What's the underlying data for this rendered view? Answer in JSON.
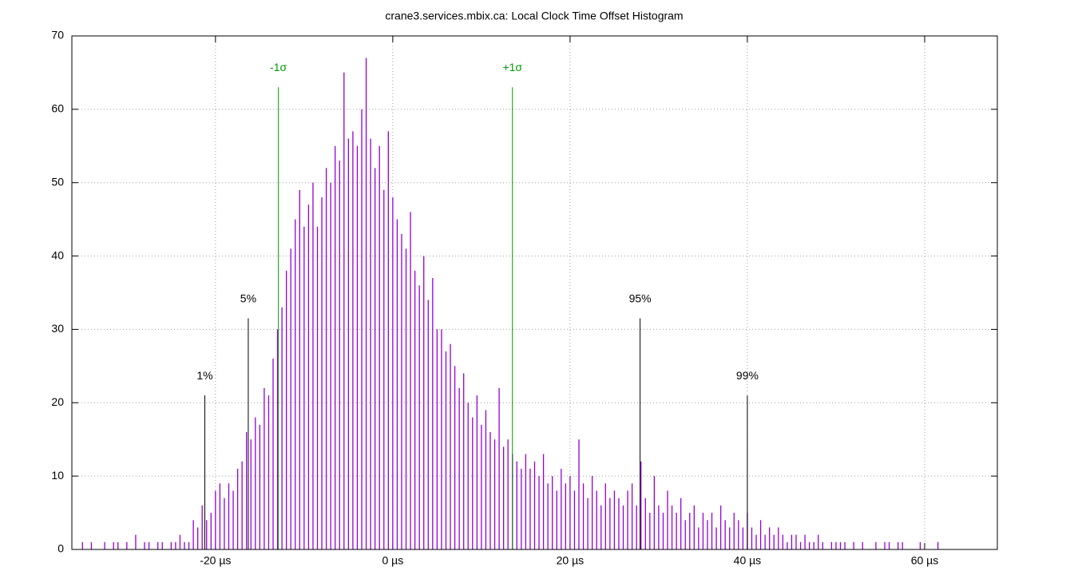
{
  "chart_data": {
    "type": "impulse",
    "title": "crane3.services.mbix.ca: Local Clock Time Offset Histogram",
    "color": "#9400d3",
    "x": [
      -35,
      -34.5,
      -34,
      -33.5,
      -33,
      -32.5,
      -32,
      -31.5,
      -31,
      -30.5,
      -30,
      -29.5,
      -29,
      -28.5,
      -28,
      -27.5,
      -27,
      -26.5,
      -26,
      -25.5,
      -25,
      -24.5,
      -24,
      -23.5,
      -23,
      -22.5,
      -22,
      -21.5,
      -21,
      -20.5,
      -20,
      -19.5,
      -19,
      -18.5,
      -18,
      -17.5,
      -17,
      -16.5,
      -16,
      -15.5,
      -15,
      -14.5,
      -14,
      -13.5,
      -13,
      -12.5,
      -12,
      -11.5,
      -11,
      -10.5,
      -10,
      -9.5,
      -9,
      -8.5,
      -8,
      -7.5,
      -7,
      -6.5,
      -6,
      -5.5,
      -5,
      -4.5,
      -4,
      -3.5,
      -3,
      -2.5,
      -2,
      -1.5,
      -1,
      -0.5,
      0,
      0.5,
      1,
      1.5,
      2,
      2.5,
      3,
      3.5,
      4,
      4.5,
      5,
      5.5,
      6,
      6.5,
      7,
      7.5,
      8,
      8.5,
      9,
      9.5,
      10,
      10.5,
      11,
      11.5,
      12,
      12.5,
      13,
      13.5,
      14,
      14.5,
      15,
      15.5,
      16,
      16.5,
      17,
      17.5,
      18,
      18.5,
      19,
      19.5,
      20,
      20.5,
      21,
      21.5,
      22,
      22.5,
      23,
      23.5,
      24,
      24.5,
      25,
      25.5,
      26,
      26.5,
      27,
      27.5,
      28,
      28.5,
      29,
      29.5,
      30,
      30.5,
      31,
      31.5,
      32,
      32.5,
      33,
      33.5,
      34,
      34.5,
      35,
      35.5,
      36,
      36.5,
      37,
      37.5,
      38,
      38.5,
      39,
      39.5,
      40,
      40.5,
      41,
      41.5,
      42,
      42.5,
      43,
      43.5,
      44,
      44.5,
      45,
      45.5,
      46,
      46.5,
      47,
      47.5,
      48,
      48.5,
      49,
      49.5,
      50,
      50.5,
      51,
      51.5,
      52,
      52.5,
      53,
      53.5,
      54,
      54.5,
      55,
      55.5,
      56,
      56.5,
      57,
      57.5,
      58,
      58.5,
      59,
      59.5,
      60,
      60.5,
      61,
      61.5,
      62
    ],
    "values": [
      1,
      0,
      1,
      0,
      0,
      1,
      0,
      1,
      1,
      0,
      1,
      0,
      2,
      0,
      1,
      1,
      0,
      1,
      1,
      0,
      1,
      1,
      2,
      1,
      1,
      4,
      3,
      6,
      4,
      5,
      8,
      9,
      7,
      9,
      8,
      11,
      12,
      16,
      15,
      18,
      17,
      22,
      21,
      26,
      30,
      33,
      38,
      41,
      45,
      49,
      44,
      47,
      50,
      44,
      48,
      52,
      50,
      55,
      53,
      65,
      56,
      57,
      55,
      60,
      67,
      56,
      52,
      55,
      49,
      57,
      48,
      45,
      43,
      41,
      46,
      38,
      36,
      40,
      34,
      37,
      30,
      30,
      27,
      28,
      25,
      22,
      24,
      20,
      18,
      21,
      17,
      19,
      16,
      15,
      22,
      14,
      15,
      13,
      12,
      11,
      13,
      11,
      12,
      10,
      13,
      9,
      10,
      8,
      11,
      9,
      10,
      8,
      15,
      9,
      7,
      10,
      8,
      6,
      9,
      7,
      8,
      7,
      6,
      8,
      9,
      6,
      12,
      7,
      5,
      10,
      6,
      5,
      8,
      6,
      5,
      7,
      4,
      5,
      6,
      3,
      5,
      4,
      5,
      3,
      6,
      4,
      3,
      5,
      4,
      3,
      5,
      3,
      2,
      4,
      2,
      3,
      2,
      3,
      2,
      1,
      2,
      2,
      1,
      2,
      1,
      1,
      2,
      1,
      0,
      1,
      1,
      1,
      1,
      0,
      1,
      0,
      1,
      0,
      0,
      1,
      0,
      1,
      1,
      0,
      1,
      1,
      0,
      0,
      0,
      1,
      0,
      0,
      0,
      1,
      0
    ],
    "xlim": [
      -36.2,
      68.2
    ],
    "xticks": [
      {
        "value": -20,
        "label": "-20 µs"
      },
      {
        "value": 0,
        "label": "0 µs"
      },
      {
        "value": 20,
        "label": "20 µs"
      },
      {
        "value": 40,
        "label": "40 µs"
      },
      {
        "value": 60,
        "label": "60 µs"
      }
    ],
    "ylim": [
      0,
      70
    ],
    "yticks": [
      0,
      10,
      20,
      30,
      40,
      50,
      60,
      70
    ],
    "grid": true,
    "annotations": [
      {
        "label": "1%",
        "x": -21.2,
        "y": 21,
        "color": "#000000"
      },
      {
        "label": "5%",
        "x": -16.3,
        "y": 31.5,
        "color": "#000000"
      },
      {
        "label": "-1σ",
        "x": -12.9,
        "y": 63,
        "color": "#009900"
      },
      {
        "label": "+1σ",
        "x": 13.5,
        "y": 63,
        "color": "#009900"
      },
      {
        "label": "95%",
        "x": 27.9,
        "y": 31.5,
        "color": "#000000"
      },
      {
        "label": "99%",
        "x": 40.0,
        "y": 21,
        "color": "#000000"
      }
    ]
  }
}
